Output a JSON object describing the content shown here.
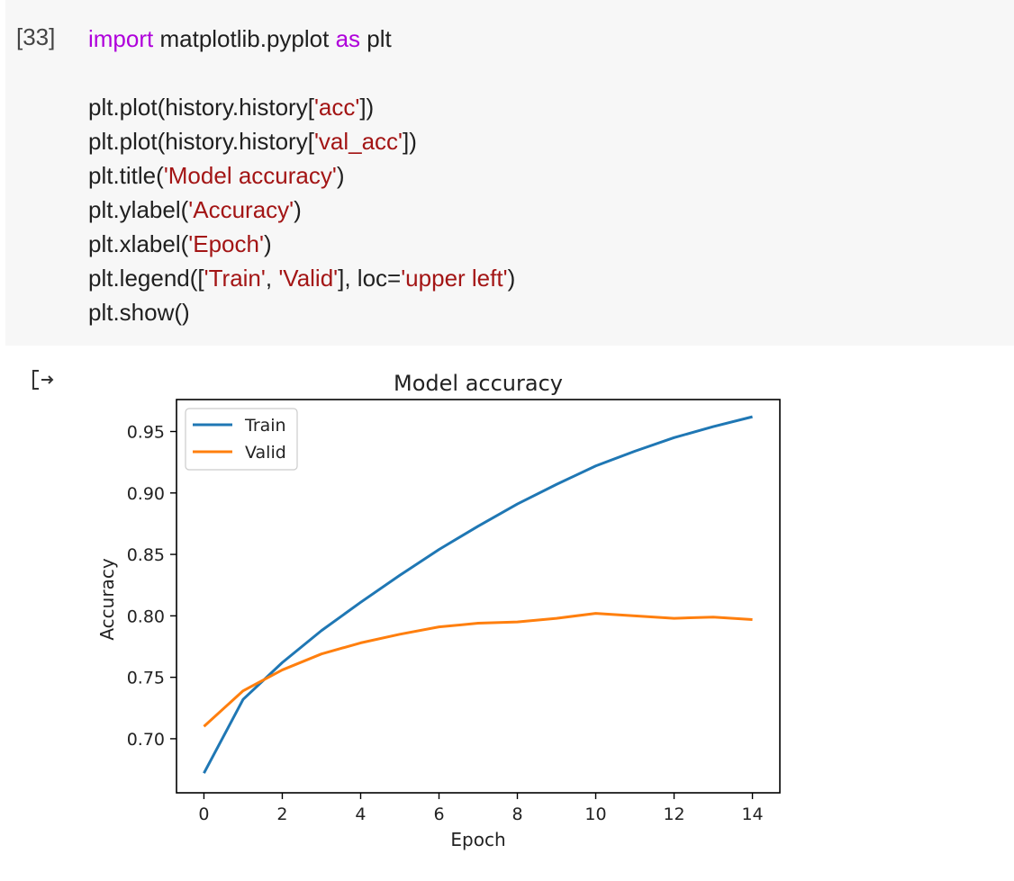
{
  "cell": {
    "exec_count": "[33]",
    "code_lines": [
      [
        {
          "t": "import",
          "c": "kw"
        },
        {
          "t": " matplotlib.pyplot ",
          "c": ""
        },
        {
          "t": "as",
          "c": "kw"
        },
        {
          "t": " plt",
          "c": ""
        }
      ],
      [],
      [
        {
          "t": "plt.plot(history.history[",
          "c": ""
        },
        {
          "t": "'acc'",
          "c": "str"
        },
        {
          "t": "])",
          "c": ""
        }
      ],
      [
        {
          "t": "plt.plot(history.history[",
          "c": ""
        },
        {
          "t": "'val_acc'",
          "c": "str"
        },
        {
          "t": "])",
          "c": ""
        }
      ],
      [
        {
          "t": "plt.title(",
          "c": ""
        },
        {
          "t": "'Model accuracy'",
          "c": "str"
        },
        {
          "t": ")",
          "c": ""
        }
      ],
      [
        {
          "t": "plt.ylabel(",
          "c": ""
        },
        {
          "t": "'Accuracy'",
          "c": "str"
        },
        {
          "t": ")",
          "c": ""
        }
      ],
      [
        {
          "t": "plt.xlabel(",
          "c": ""
        },
        {
          "t": "'Epoch'",
          "c": "str"
        },
        {
          "t": ")",
          "c": ""
        }
      ],
      [
        {
          "t": "plt.legend([",
          "c": ""
        },
        {
          "t": "'Train'",
          "c": "str"
        },
        {
          "t": ", ",
          "c": ""
        },
        {
          "t": "'Valid'",
          "c": "str"
        },
        {
          "t": "], loc=",
          "c": ""
        },
        {
          "t": "'upper left'",
          "c": "str"
        },
        {
          "t": ")",
          "c": ""
        }
      ],
      [
        {
          "t": "plt.show()",
          "c": ""
        }
      ]
    ]
  },
  "output": {
    "icon": "output-arrow-icon"
  },
  "chart_data": {
    "type": "line",
    "title": "Model accuracy",
    "xlabel": "Epoch",
    "ylabel": "Accuracy",
    "x": [
      0,
      1,
      2,
      3,
      4,
      5,
      6,
      7,
      8,
      9,
      10,
      11,
      12,
      13,
      14
    ],
    "xlim": [
      -0.7,
      14.7
    ],
    "ylim": [
      0.656,
      0.976
    ],
    "xticks": [
      0,
      2,
      4,
      6,
      8,
      10,
      12,
      14
    ],
    "yticks": [
      0.7,
      0.75,
      0.8,
      0.85,
      0.9,
      0.95
    ],
    "ytick_labels": [
      "0.70",
      "0.75",
      "0.80",
      "0.85",
      "0.90",
      "0.95"
    ],
    "legend_loc": "upper left",
    "grid": false,
    "series": [
      {
        "name": "Train",
        "color": "#1f77b4",
        "values": [
          0.672,
          0.732,
          0.762,
          0.788,
          0.811,
          0.833,
          0.854,
          0.873,
          0.891,
          0.907,
          0.922,
          0.934,
          0.945,
          0.954,
          0.962
        ]
      },
      {
        "name": "Valid",
        "color": "#ff7f0e",
        "values": [
          0.71,
          0.739,
          0.756,
          0.769,
          0.778,
          0.785,
          0.791,
          0.794,
          0.795,
          0.798,
          0.802,
          0.8,
          0.798,
          0.799,
          0.797
        ]
      }
    ]
  }
}
